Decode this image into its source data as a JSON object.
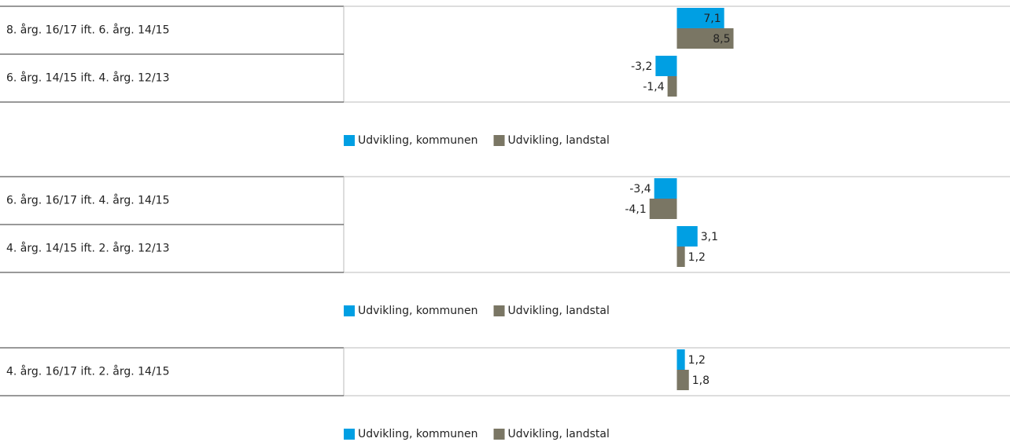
{
  "chart_data": [
    {
      "type": "bar",
      "orientation": "horizontal",
      "categories": [
        "8. årg. 16/17 ift. 6. årg. 14/15",
        "6. årg. 14/15 ift. 4. årg. 12/13"
      ],
      "series": [
        {
          "name": "Udvikling, kommunen",
          "color": "#009fe3",
          "values": [
            7.1,
            -3.2
          ],
          "value_labels": [
            "7,1",
            "-3,2"
          ]
        },
        {
          "name": "Udvikling, landstal",
          "color": "#7a7664",
          "values": [
            8.5,
            -1.4
          ],
          "value_labels": [
            "8,5",
            "-1,4"
          ]
        }
      ],
      "xlim": [
        -50,
        50
      ],
      "legend": "bottom"
    },
    {
      "type": "bar",
      "orientation": "horizontal",
      "categories": [
        "6. årg. 16/17 ift. 4. årg. 14/15",
        "4. årg. 14/15 ift. 2. årg. 12/13"
      ],
      "series": [
        {
          "name": "Udvikling, kommunen",
          "color": "#009fe3",
          "values": [
            -3.4,
            3.1
          ],
          "value_labels": [
            "-3,4",
            "3,1"
          ]
        },
        {
          "name": "Udvikling, landstal",
          "color": "#7a7664",
          "values": [
            -4.1,
            1.2
          ],
          "value_labels": [
            "-4,1",
            "1,2"
          ]
        }
      ],
      "xlim": [
        -50,
        50
      ],
      "legend": "bottom"
    },
    {
      "type": "bar",
      "orientation": "horizontal",
      "categories": [
        "4. årg. 16/17 ift. 2. årg. 14/15"
      ],
      "series": [
        {
          "name": "Udvikling, kommunen",
          "color": "#009fe3",
          "values": [
            1.2
          ],
          "value_labels": [
            "1,2"
          ]
        },
        {
          "name": "Udvikling, landstal",
          "color": "#7a7664",
          "values": [
            1.8
          ],
          "value_labels": [
            "1,8"
          ]
        }
      ],
      "xlim": [
        -50,
        50
      ],
      "legend": "bottom"
    }
  ]
}
